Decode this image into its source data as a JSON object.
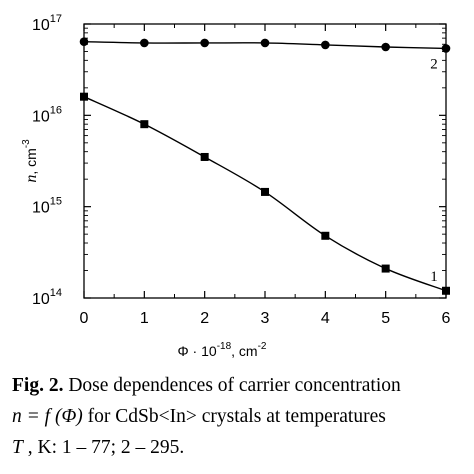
{
  "chart_data": {
    "type": "line",
    "x_scale": "linear",
    "y_scale": "log",
    "xlim": [
      0,
      6
    ],
    "ylim": [
      100000000000000.0,
      1e+17
    ],
    "xlabel_main": "Φ · 10",
    "xlabel_exp": "-18",
    "xlabel_unit": ",  cm",
    "xlabel_unit_exp": "-2",
    "ylabel_var": "n",
    "ylabel_unit": ",  cm",
    "ylabel_unit_exp": "-3",
    "x_ticks": [
      "0",
      "1",
      "2",
      "3",
      "4",
      "5",
      "6"
    ],
    "y_ticks": [
      {
        "base": "10",
        "exp": "14"
      },
      {
        "base": "10",
        "exp": "15"
      },
      {
        "base": "10",
        "exp": "16"
      },
      {
        "base": "10",
        "exp": "17"
      }
    ],
    "grid": false,
    "series": [
      {
        "name": "1",
        "marker": "square",
        "x": [
          0,
          1,
          2,
          3,
          4,
          5,
          6
        ],
        "y": [
          1.6e+16,
          8000000000000000.0,
          3500000000000000.0,
          1450000000000000.0,
          480000000000000.0,
          210000000000000.0,
          120000000000000.0
        ]
      },
      {
        "name": "2",
        "marker": "circle",
        "x": [
          0,
          1,
          2,
          3,
          4,
          5,
          6
        ],
        "y": [
          6.4e+16,
          6.2e+16,
          6.2e+16,
          6.2e+16,
          5.9e+16,
          5.6e+16,
          5.4e+16
        ]
      }
    ]
  },
  "caption": {
    "label": "Fig. 2.",
    "line1": " Dose dependences of carrier concentration",
    "formula": "n = f (Φ)",
    "line2": " for CdSb<In> crystals at temperatures",
    "var": "T",
    "line3": " , K: 1 – 77; 2 – 295."
  }
}
